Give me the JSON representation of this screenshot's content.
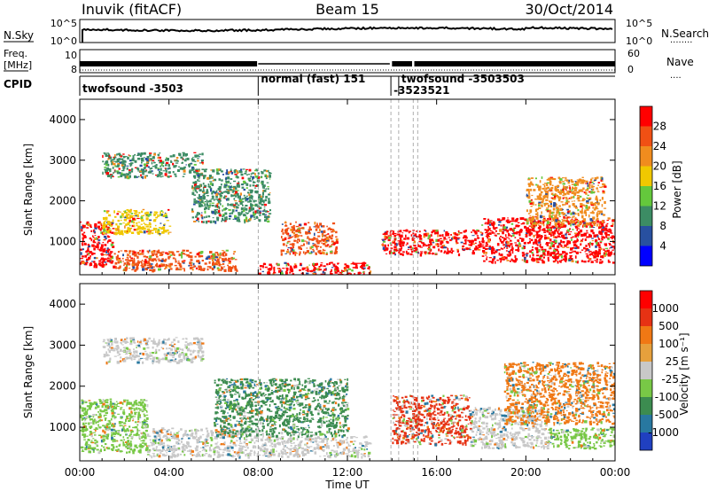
{
  "header": {
    "station": "Inuvik (fitACF)",
    "beam": "Beam 15",
    "date": "30/Oct/2014"
  },
  "noise_panel": {
    "left_label": "N.Sky",
    "right_label": "N.Search",
    "right_dots": "........",
    "left_ticks": [
      "10^5",
      "10^0"
    ],
    "right_ticks": [
      "10^5",
      "10^0"
    ]
  },
  "freq_panel": {
    "label_line1": "Freq.",
    "label_line2": "[MHz]",
    "left_ticks": [
      "10",
      "8"
    ],
    "right_label": "Nave",
    "right_dots": "....",
    "right_ticks": [
      "60",
      "0"
    ]
  },
  "cpid": {
    "label": "CPID",
    "entries": [
      {
        "start_h": 0.0,
        "text": "twofsound -3503",
        "row": 1
      },
      {
        "start_h": 8.0,
        "text": "normal (fast) 151",
        "row": 0
      },
      {
        "start_h": 13.95,
        "text": "-3523521",
        "row": 2
      },
      {
        "start_h": 14.3,
        "text": "twofsound -3503503",
        "row": 0
      }
    ]
  },
  "power_panel": {
    "ylabel": "Slant Range [km]",
    "yticks": [
      "1000",
      "2000",
      "3000",
      "4000"
    ],
    "cbar_label": "Power [dB]",
    "cbar_ticks": [
      "4",
      "8",
      "12",
      "16",
      "20",
      "24",
      "28"
    ],
    "cbar_colors": [
      "#0000ff",
      "#2850a0",
      "#3c8c64",
      "#64c83c",
      "#f0c800",
      "#f08c1e",
      "#f05014",
      "#ff0000"
    ]
  },
  "velocity_panel": {
    "ylabel": "Slant Range [km]",
    "yticks": [
      "1000",
      "2000",
      "3000",
      "4000"
    ],
    "cbar_label": "Velocity [m s⁻¹]",
    "cbar_ticks": [
      "1000",
      "500",
      "100",
      "25",
      "-25",
      "-100",
      "-500",
      "-1000"
    ],
    "cbar_colors": [
      "#2040c0",
      "#2878a0",
      "#3c8c50",
      "#78c846",
      "#c8c8c8",
      "#e6a03c",
      "#f07814",
      "#e63214",
      "#ff0000"
    ]
  },
  "xaxis": {
    "label": "Time UT",
    "ticks": [
      "00:00",
      "04:00",
      "08:00",
      "12:00",
      "16:00",
      "20:00",
      "00:00"
    ]
  },
  "chart_data": {
    "type": "heatmap",
    "title": "Inuvik (fitACF)  Beam 15  30/Oct/2014",
    "xlabel": "Time UT",
    "ylabel": "Slant Range [km]",
    "x_range_hours": [
      0,
      24
    ],
    "y_range_km": [
      180,
      4500
    ],
    "grid": false,
    "mode_change_markers_h": [
      8.0,
      13.95,
      14.3,
      14.95,
      15.15
    ],
    "power_regions": [
      {
        "t": [
          0.0,
          1.5
        ],
        "r": [
          400,
          1500
        ],
        "level": "28"
      },
      {
        "t": [
          1.5,
          7.0
        ],
        "r": [
          300,
          800
        ],
        "level": "24"
      },
      {
        "t": [
          1.0,
          4.0
        ],
        "r": [
          1200,
          1800
        ],
        "level": "16"
      },
      {
        "t": [
          5.0,
          8.5
        ],
        "r": [
          1500,
          2800
        ],
        "level": "8"
      },
      {
        "t": [
          8.0,
          13.0
        ],
        "r": [
          200,
          500
        ],
        "level": "28"
      },
      {
        "t": [
          9.0,
          11.5
        ],
        "r": [
          700,
          1500
        ],
        "level": "24"
      },
      {
        "t": [
          13.5,
          18.0
        ],
        "r": [
          700,
          1300
        ],
        "level": "28"
      },
      {
        "t": [
          18.0,
          24.0
        ],
        "r": [
          500,
          1600
        ],
        "level": "28"
      },
      {
        "t": [
          20.0,
          23.5
        ],
        "r": [
          1400,
          2600
        ],
        "level": "20"
      },
      {
        "t": [
          1.0,
          5.5
        ],
        "r": [
          2600,
          3200
        ],
        "level": "8"
      }
    ],
    "velocity_regions": [
      {
        "t": [
          0.0,
          3.0
        ],
        "r": [
          400,
          1700
        ],
        "level": "100"
      },
      {
        "t": [
          3.0,
          8.0
        ],
        "r": [
          300,
          1000
        ],
        "level": "25"
      },
      {
        "t": [
          8.0,
          13.0
        ],
        "r": [
          300,
          800
        ],
        "level": "25"
      },
      {
        "t": [
          6.0,
          12.0
        ],
        "r": [
          800,
          2200
        ],
        "level": "500"
      },
      {
        "t": [
          14.0,
          17.5
        ],
        "r": [
          600,
          1800
        ],
        "level": "-500"
      },
      {
        "t": [
          17.5,
          21.0
        ],
        "r": [
          500,
          1500
        ],
        "level": "25"
      },
      {
        "t": [
          19.0,
          24.0
        ],
        "r": [
          1100,
          2600
        ],
        "level": "-100"
      },
      {
        "t": [
          21.0,
          24.0
        ],
        "r": [
          500,
          1000
        ],
        "level": "100"
      },
      {
        "t": [
          1.0,
          5.5
        ],
        "r": [
          2600,
          3200
        ],
        "level": "25"
      }
    ]
  }
}
